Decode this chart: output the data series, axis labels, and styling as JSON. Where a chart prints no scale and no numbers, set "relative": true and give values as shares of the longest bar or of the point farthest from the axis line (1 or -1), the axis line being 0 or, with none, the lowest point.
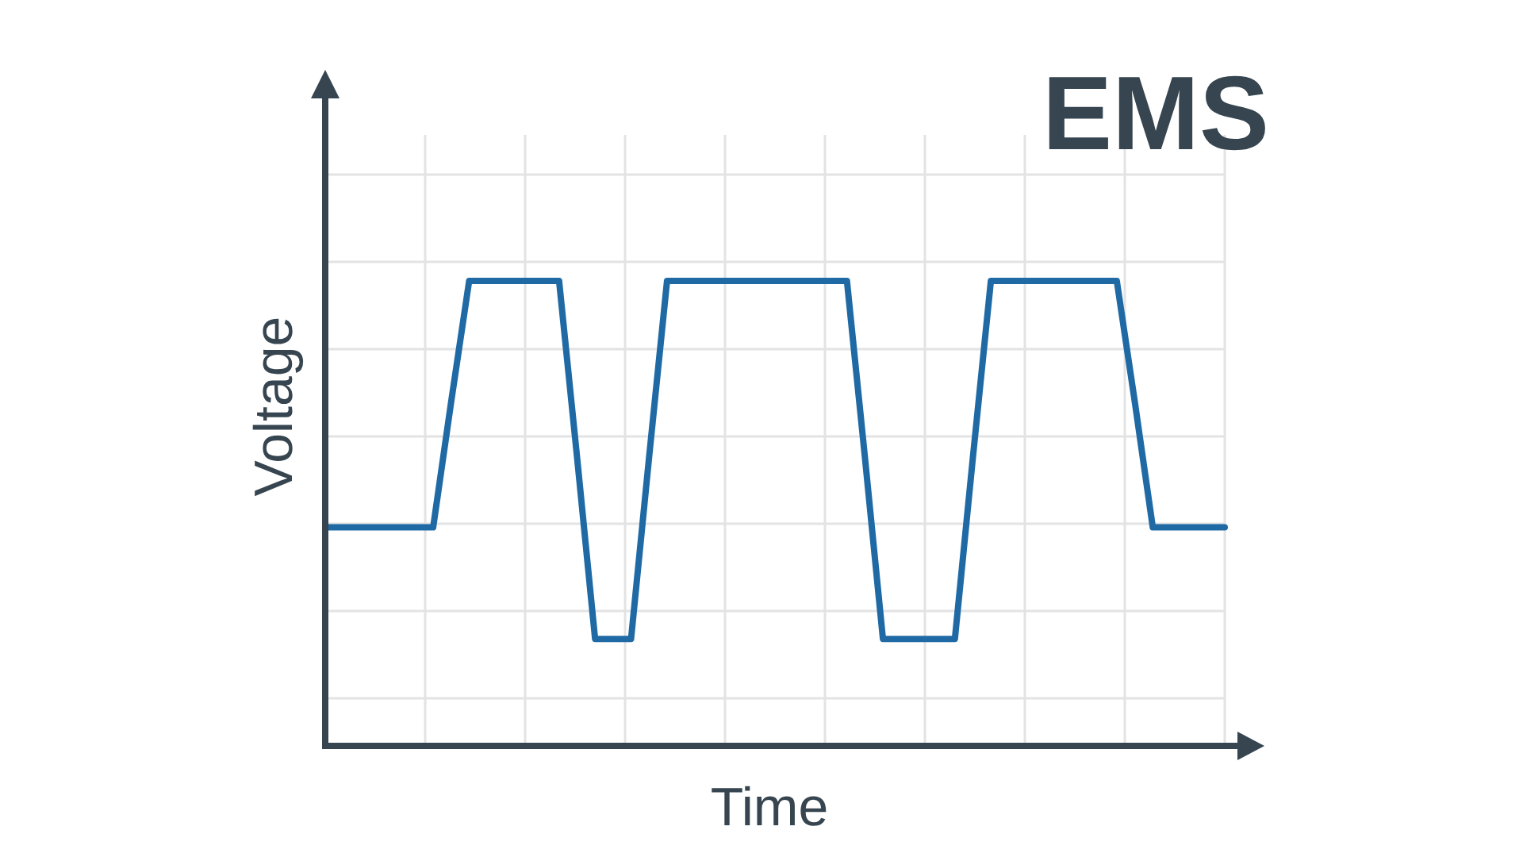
{
  "chart_data": {
    "type": "line",
    "title": "EMS",
    "xlabel": "Time",
    "ylabel": "Voltage",
    "relative": true,
    "grid": true,
    "marker": "none",
    "line_style": "solid",
    "categories": [
      null,
      null,
      null,
      null,
      null,
      null,
      null,
      null,
      null,
      null,
      null,
      null,
      null,
      null,
      null,
      null,
      null,
      null,
      null,
      null,
      null,
      null,
      null,
      null,
      null,
      null,
      null,
      null,
      null,
      null,
      null,
      null,
      null,
      null,
      null,
      null,
      null,
      null,
      null,
      null,
      null,
      null,
      null,
      null,
      null,
      null,
      null,
      null,
      null,
      null,
      null
    ],
    "series": [
      {
        "color": "#1f6aa5",
        "values": [
          0.47,
          0.47,
          0.47,
          0.47,
          0.47,
          0.47,
          0.47,
          0.74,
          1,
          1,
          1,
          1,
          1,
          1,
          0.62,
          0.23,
          0.23,
          0.23,
          0.62,
          1,
          1,
          1,
          1,
          1,
          1,
          1,
          1,
          1,
          1,
          1,
          0.62,
          0.23,
          0.23,
          0.23,
          0.23,
          0.23,
          0.62,
          1,
          1,
          1,
          1,
          1,
          1,
          1,
          1,
          0.74,
          0.47,
          0.47,
          0.47,
          0.47,
          0.47
        ]
      }
    ]
  }
}
